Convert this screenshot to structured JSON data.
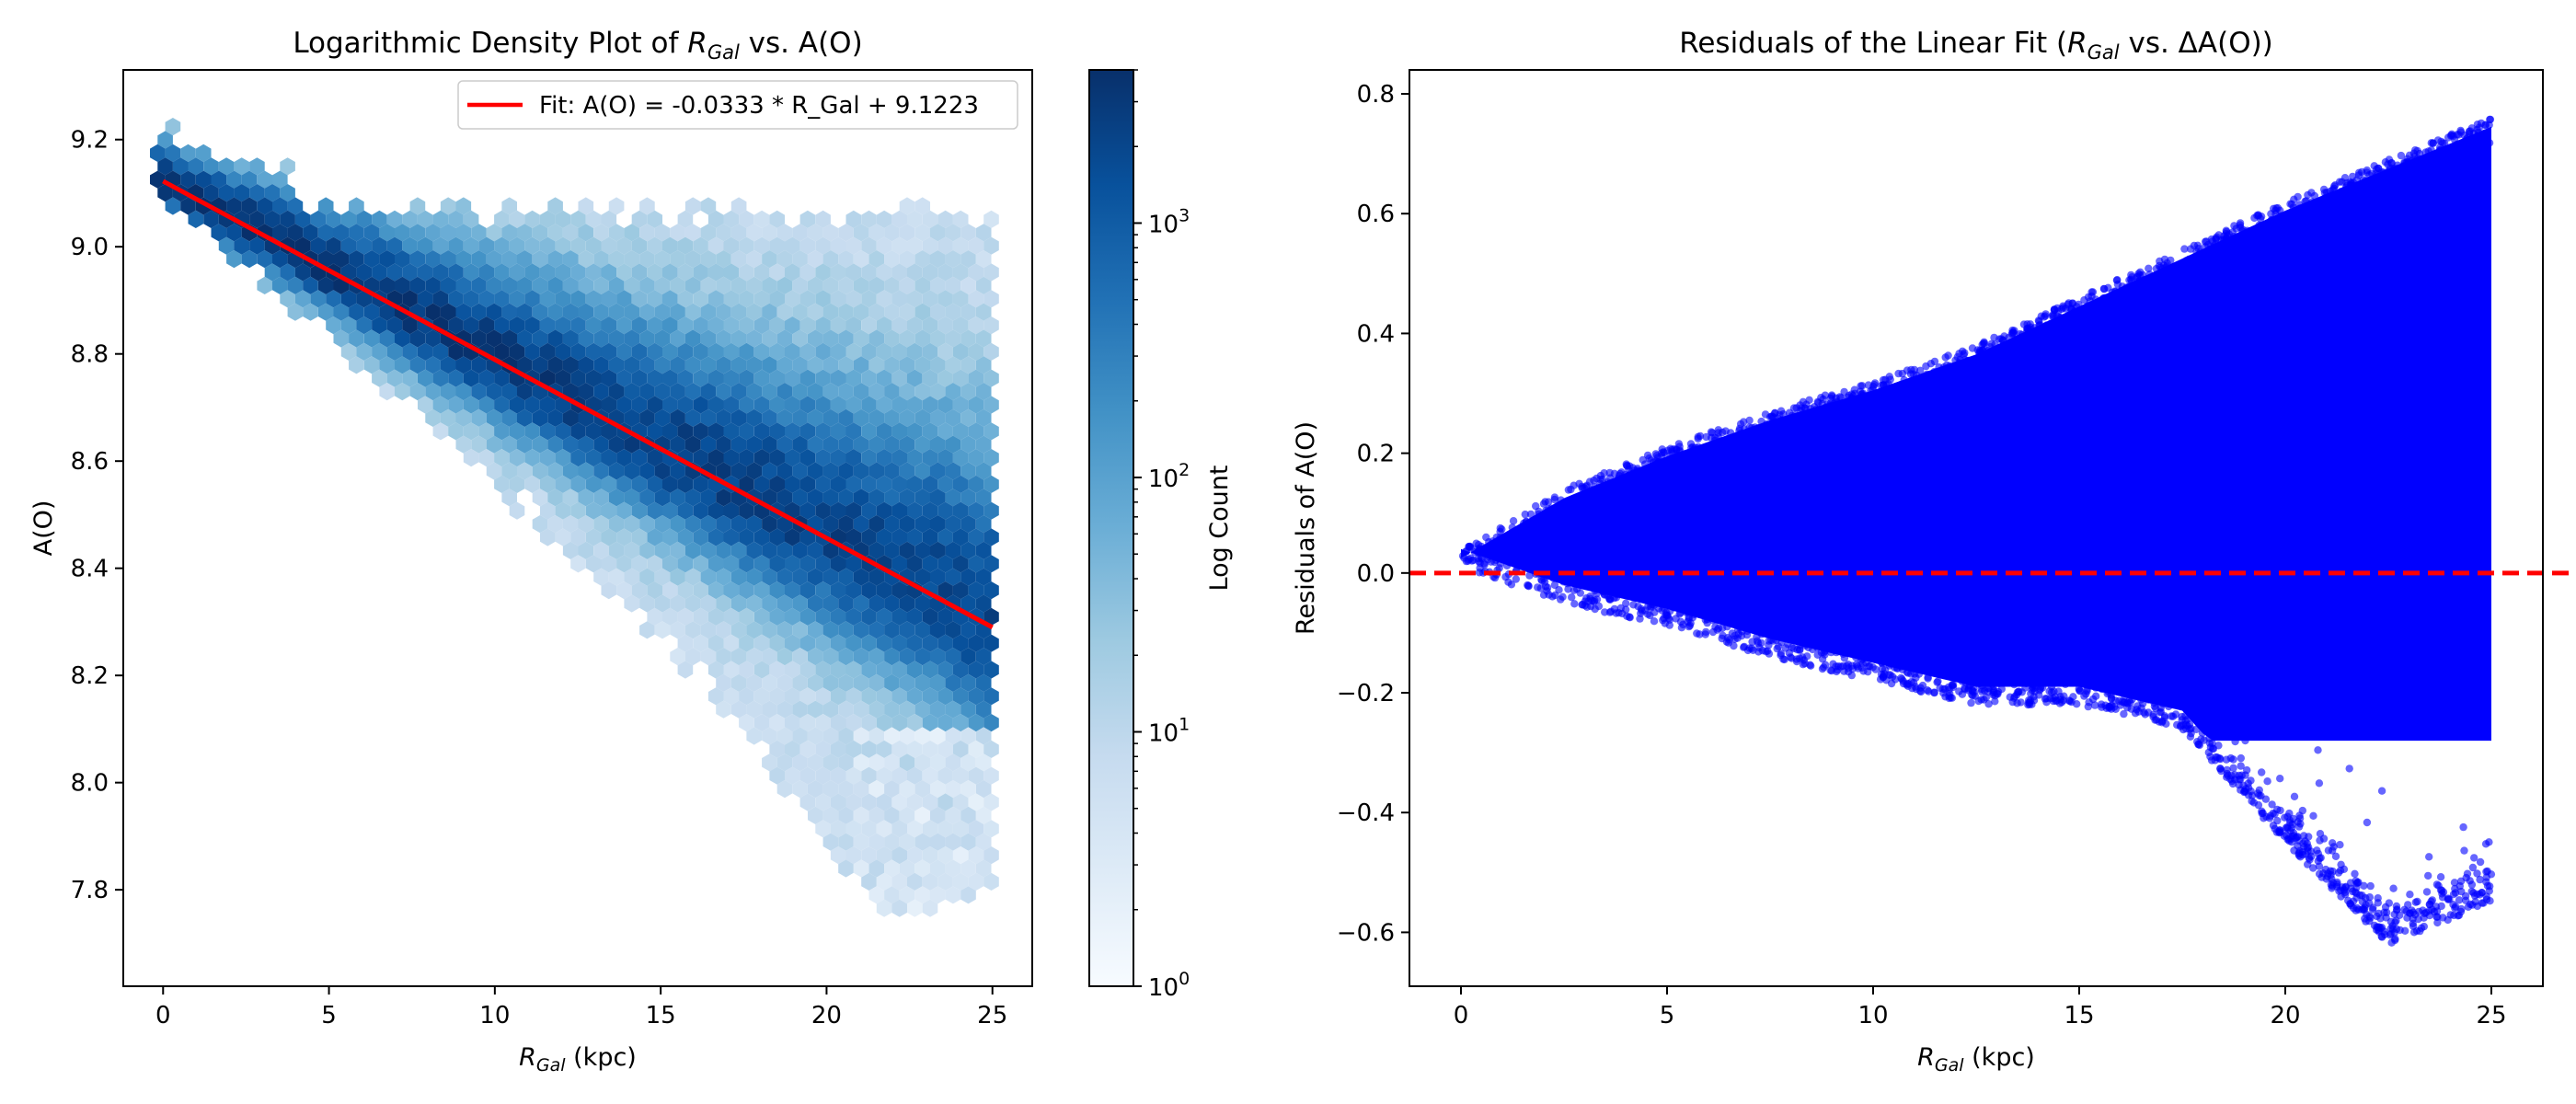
{
  "chart_data": [
    {
      "type": "hexbin",
      "title": {
        "main": "Logarithmic Density Plot of ",
        "var": "R",
        "sub": "Gal",
        "rest": " vs. A(O)"
      },
      "xlabel": {
        "var": "R",
        "sub": "Gal",
        "rest": " (kpc)"
      },
      "ylabel": "A(O)",
      "xlim": [
        -1.2,
        26.2
      ],
      "ylim": [
        7.62,
        9.33
      ],
      "xticks": [
        0,
        5,
        10,
        15,
        20,
        25
      ],
      "yticks": [
        7.8,
        8.0,
        8.2,
        8.4,
        8.6,
        8.8,
        9.0,
        9.2
      ],
      "xticklabels": [
        "0",
        "5",
        "10",
        "15",
        "20",
        "25"
      ],
      "yticklabels": [
        "7.8",
        "8.0",
        "8.2",
        "8.4",
        "8.6",
        "8.8",
        "9.0",
        "9.2"
      ],
      "colormap": "Blues",
      "colorbar": {
        "label": "Log Count",
        "scale": "log",
        "range": [
          1,
          4000
        ],
        "ticks": [
          1,
          10,
          100,
          1000
        ],
        "ticklabels": [
          {
            "base": "10",
            "exp": "0"
          },
          {
            "base": "10",
            "exp": "1"
          },
          {
            "base": "10",
            "exp": "2"
          },
          {
            "base": "10",
            "exp": "3"
          }
        ]
      },
      "fit": {
        "slope": -0.0333,
        "intercept": 9.1223,
        "x_range": [
          0,
          25
        ],
        "color": "#ff0000"
      },
      "legend": {
        "entries": [
          "Fit: A(O) = -0.0333 * R_Gal + 9.1223"
        ],
        "placement": "upper right"
      },
      "grid": false
    },
    {
      "type": "scatter",
      "title": {
        "main": "Residuals of the Linear Fit (",
        "var": "R",
        "sub": "Gal",
        "rest": " vs. ΔA(O))"
      },
      "xlabel": {
        "var": "R",
        "sub": "Gal",
        "rest": " (kpc)"
      },
      "ylabel": "Residuals of A(O)",
      "xlim": [
        -1.25,
        26.25
      ],
      "ylim": [
        -0.69,
        0.84
      ],
      "xticks": [
        0,
        5,
        10,
        15,
        20,
        25
      ],
      "yticks": [
        -0.6,
        -0.4,
        -0.2,
        0.0,
        0.2,
        0.4,
        0.6,
        0.8
      ],
      "xticklabels": [
        "0",
        "5",
        "10",
        "15",
        "20",
        "25"
      ],
      "yticklabels": [
        "−0.6",
        "−0.4",
        "−0.2",
        "0.0",
        "0.2",
        "0.4",
        "0.6",
        "0.8"
      ],
      "point_color": "#0000ff",
      "envelope": {
        "x": [
          0,
          2.5,
          5,
          7.5,
          10,
          12.5,
          15,
          17.5,
          20,
          22.5,
          25
        ],
        "upper": [
          0.04,
          0.14,
          0.21,
          0.27,
          0.32,
          0.38,
          0.46,
          0.54,
          0.62,
          0.69,
          0.76
        ],
        "lower": [
          0.01,
          -0.05,
          -0.09,
          -0.14,
          -0.18,
          -0.22,
          -0.22,
          -0.26,
          -0.45,
          -0.62,
          -0.55
        ]
      },
      "reference_line": {
        "y": 0.0,
        "color": "#ff0000",
        "style": "dashed"
      },
      "grid": false
    }
  ]
}
